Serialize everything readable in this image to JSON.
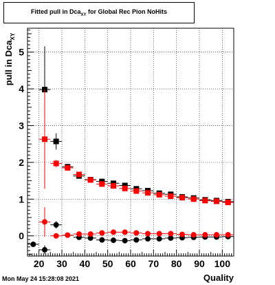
{
  "chart_data": {
    "type": "scatter",
    "title_main": "Fitted pull in Dca",
    "title_sub": "XY",
    "title_rest": " for Global Rec Pion NoHits",
    "ylabel_main": "pull in Dca",
    "ylabel_sub": "XY",
    "xlabel": "Quality",
    "xlim": [
      15,
      105
    ],
    "ylim": [
      -0.55,
      5.65
    ],
    "x_ticks": [
      20,
      30,
      40,
      50,
      60,
      70,
      80,
      90,
      100
    ],
    "y_ticks": [
      0,
      1,
      2,
      3,
      4,
      5
    ],
    "grid": true,
    "series": [
      {
        "marker": "square",
        "color": "#000000",
        "points": [
          {
            "x": 22.5,
            "y": 3.98,
            "yerr": 1.18
          },
          {
            "x": 27.5,
            "y": 2.57,
            "yerr": 0.22
          },
          {
            "x": 32.5,
            "y": 1.88,
            "yerr": 0.08
          },
          {
            "x": 37.5,
            "y": 1.63,
            "yerr": 0.05
          },
          {
            "x": 42.5,
            "y": 1.53,
            "yerr": 0.04
          },
          {
            "x": 47.5,
            "y": 1.48,
            "yerr": 0.04
          },
          {
            "x": 52.5,
            "y": 1.43,
            "yerr": 0.03
          },
          {
            "x": 57.5,
            "y": 1.37,
            "yerr": 0.03
          },
          {
            "x": 62.5,
            "y": 1.28,
            "yerr": 0.03
          },
          {
            "x": 67.5,
            "y": 1.23,
            "yerr": 0.03
          },
          {
            "x": 72.5,
            "y": 1.16,
            "yerr": 0.03
          },
          {
            "x": 77.5,
            "y": 1.13,
            "yerr": 0.03
          },
          {
            "x": 82.5,
            "y": 1.06,
            "yerr": 0.03
          },
          {
            "x": 87.5,
            "y": 1.03,
            "yerr": 0.03
          },
          {
            "x": 92.5,
            "y": 0.98,
            "yerr": 0.03
          },
          {
            "x": 97.5,
            "y": 0.96,
            "yerr": 0.03
          },
          {
            "x": 102.5,
            "y": 0.93,
            "yerr": 0.03
          }
        ]
      },
      {
        "marker": "square",
        "color": "#ff0000",
        "points": [
          {
            "x": 22.5,
            "y": 2.63,
            "yerr": 1.35
          },
          {
            "x": 27.5,
            "y": 1.97,
            "yerr": 0.1
          },
          {
            "x": 32.5,
            "y": 1.85,
            "yerr": 0.06
          },
          {
            "x": 37.5,
            "y": 1.67,
            "yerr": 0.05
          },
          {
            "x": 42.5,
            "y": 1.52,
            "yerr": 0.04
          },
          {
            "x": 47.5,
            "y": 1.41,
            "yerr": 0.04
          },
          {
            "x": 52.5,
            "y": 1.36,
            "yerr": 0.03
          },
          {
            "x": 57.5,
            "y": 1.29,
            "yerr": 0.03
          },
          {
            "x": 62.5,
            "y": 1.22,
            "yerr": 0.03
          },
          {
            "x": 67.5,
            "y": 1.17,
            "yerr": 0.03
          },
          {
            "x": 72.5,
            "y": 1.12,
            "yerr": 0.03
          },
          {
            "x": 77.5,
            "y": 1.08,
            "yerr": 0.03
          },
          {
            "x": 82.5,
            "y": 1.04,
            "yerr": 0.03
          },
          {
            "x": 87.5,
            "y": 1.0,
            "yerr": 0.03
          },
          {
            "x": 92.5,
            "y": 0.96,
            "yerr": 0.03
          },
          {
            "x": 97.5,
            "y": 0.94,
            "yerr": 0.03
          },
          {
            "x": 102.5,
            "y": 0.91,
            "yerr": 0.03
          }
        ]
      },
      {
        "marker": "circle",
        "color": "#000000",
        "points": [
          {
            "x": 17.5,
            "y": -0.23,
            "yerr": 0.05
          },
          {
            "x": 22.5,
            "y": -0.38,
            "yerr": 0.12
          },
          {
            "x": 27.5,
            "y": 0.3,
            "yerr": 0.1
          },
          {
            "x": 32.5,
            "y": 0.02,
            "yerr": 0.03
          },
          {
            "x": 37.5,
            "y": -0.04,
            "yerr": 0.03
          },
          {
            "x": 42.5,
            "y": -0.06,
            "yerr": 0.03
          },
          {
            "x": 47.5,
            "y": -0.11,
            "yerr": 0.03
          },
          {
            "x": 52.5,
            "y": -0.12,
            "yerr": 0.03
          },
          {
            "x": 57.5,
            "y": -0.13,
            "yerr": 0.03
          },
          {
            "x": 62.5,
            "y": -0.11,
            "yerr": 0.03
          },
          {
            "x": 67.5,
            "y": -0.08,
            "yerr": 0.03
          },
          {
            "x": 72.5,
            "y": -0.08,
            "yerr": 0.03
          },
          {
            "x": 77.5,
            "y": -0.06,
            "yerr": 0.03
          },
          {
            "x": 82.5,
            "y": -0.05,
            "yerr": 0.03
          },
          {
            "x": 87.5,
            "y": -0.04,
            "yerr": 0.03
          },
          {
            "x": 92.5,
            "y": -0.03,
            "yerr": 0.03
          },
          {
            "x": 97.5,
            "y": -0.03,
            "yerr": 0.03
          },
          {
            "x": 102.5,
            "y": -0.02,
            "yerr": 0.03
          }
        ]
      },
      {
        "marker": "circle",
        "color": "#ff0000",
        "points": [
          {
            "x": 22.5,
            "y": 0.38,
            "yerr": 0.4
          },
          {
            "x": 27.5,
            "y": 0.0,
            "yerr": 0.05
          },
          {
            "x": 32.5,
            "y": 0.02,
            "yerr": 0.03
          },
          {
            "x": 37.5,
            "y": 0.05,
            "yerr": 0.03
          },
          {
            "x": 42.5,
            "y": 0.05,
            "yerr": 0.03
          },
          {
            "x": 47.5,
            "y": 0.08,
            "yerr": 0.03
          },
          {
            "x": 52.5,
            "y": 0.1,
            "yerr": 0.03
          },
          {
            "x": 57.5,
            "y": 0.1,
            "yerr": 0.03
          },
          {
            "x": 62.5,
            "y": 0.08,
            "yerr": 0.03
          },
          {
            "x": 67.5,
            "y": 0.06,
            "yerr": 0.03
          },
          {
            "x": 72.5,
            "y": 0.06,
            "yerr": 0.03
          },
          {
            "x": 77.5,
            "y": 0.06,
            "yerr": 0.03
          },
          {
            "x": 82.5,
            "y": 0.04,
            "yerr": 0.03
          },
          {
            "x": 87.5,
            "y": 0.03,
            "yerr": 0.03
          },
          {
            "x": 92.5,
            "y": 0.03,
            "yerr": 0.03
          },
          {
            "x": 97.5,
            "y": 0.03,
            "yerr": 0.03
          },
          {
            "x": 102.5,
            "y": 0.03,
            "yerr": 0.03
          }
        ]
      }
    ]
  },
  "footer": {
    "datestamp": "Mon May 24 15:28:08 2021"
  }
}
